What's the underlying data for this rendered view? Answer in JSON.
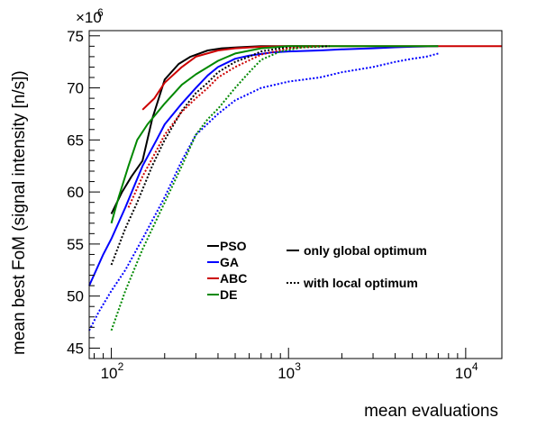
{
  "chart_data": {
    "type": "line",
    "xscale": "log",
    "xlabel": "mean evaluations",
    "ylabel": "mean best FoM (signal intensity [n/s])",
    "y_multiplier": "×10",
    "y_multiplier_exp": "6",
    "xlim": [
      75,
      16000
    ],
    "ylim": [
      44,
      75.5
    ],
    "xticks": [
      {
        "value": 100,
        "base": "10",
        "exp": "2"
      },
      {
        "value": 1000,
        "base": "10",
        "exp": "3"
      },
      {
        "value": 10000,
        "base": "10",
        "exp": "4"
      }
    ],
    "yticks": [
      45,
      50,
      55,
      60,
      65,
      70,
      75
    ],
    "colors": {
      "PSO": "#000000",
      "GA": "#0000ff",
      "ABC": "#cc0000",
      "DE": "#008800"
    },
    "legend": {
      "algorithms": [
        "PSO",
        "GA",
        "ABC",
        "DE"
      ],
      "styles": [
        {
          "label": "only global optimum",
          "dash": "solid"
        },
        {
          "label": "with local optimum",
          "dash": "dotted"
        }
      ]
    },
    "series": [
      {
        "name": "PSO",
        "style": "solid",
        "color": "#000000",
        "x": [
          100,
          115,
          130,
          150,
          170,
          200,
          240,
          280,
          350,
          420,
          520,
          700,
          1000,
          1500
        ],
        "y": [
          57.9,
          60.0,
          61.5,
          63.0,
          67.0,
          70.8,
          72.3,
          73.0,
          73.6,
          73.8,
          73.9,
          74.0,
          74.0,
          74.0
        ]
      },
      {
        "name": "GA",
        "style": "solid",
        "color": "#0000ff",
        "x": [
          75,
          90,
          100,
          120,
          150,
          180,
          200,
          250,
          300,
          350,
          400,
          500,
          600,
          800,
          1000,
          1500,
          2000,
          3000,
          4000,
          5000,
          7000
        ],
        "y": [
          51.0,
          54.0,
          55.5,
          58.5,
          62.5,
          65.0,
          66.5,
          68.5,
          70.0,
          71.2,
          72.0,
          72.8,
          73.1,
          73.4,
          73.5,
          73.6,
          73.7,
          73.8,
          73.9,
          73.95,
          74.0
        ]
      },
      {
        "name": "ABC",
        "style": "solid",
        "color": "#cc0000",
        "x": [
          150,
          175,
          200,
          250,
          300,
          400,
          500,
          700,
          1000,
          2000,
          5000,
          10000,
          16000
        ],
        "y": [
          67.9,
          69.0,
          70.5,
          72.0,
          73.0,
          73.6,
          73.8,
          73.95,
          74.0,
          74.0,
          74.0,
          74.0,
          74.0
        ]
      },
      {
        "name": "DE",
        "style": "solid",
        "color": "#008800",
        "x": [
          100,
          110,
          125,
          140,
          160,
          200,
          250,
          300,
          400,
          500,
          700,
          1000,
          2000,
          5000,
          7000
        ],
        "y": [
          57.0,
          59.5,
          62.5,
          65.0,
          66.5,
          68.5,
          70.3,
          71.3,
          72.6,
          73.3,
          73.8,
          74.0,
          74.0,
          74.0,
          74.0
        ]
      },
      {
        "name": "PSO",
        "style": "dotted",
        "color": "#000000",
        "x": [
          100,
          120,
          140,
          170,
          200,
          250,
          300,
          350,
          400,
          500,
          600,
          700,
          900,
          1200,
          1700
        ],
        "y": [
          53.0,
          56.5,
          59.0,
          62.5,
          65.0,
          67.8,
          69.5,
          70.5,
          71.5,
          72.5,
          73.0,
          73.5,
          73.8,
          73.9,
          74.0
        ]
      },
      {
        "name": "GA",
        "style": "dotted",
        "color": "#0000ff",
        "x": [
          75,
          85,
          100,
          120,
          150,
          200,
          250,
          300,
          400,
          500,
          700,
          1000,
          1500,
          2000,
          3000,
          4000,
          5000,
          6000,
          7000
        ],
        "y": [
          46.7,
          48.5,
          50.5,
          52.5,
          55.5,
          59.5,
          63.0,
          65.5,
          67.5,
          68.8,
          70.0,
          70.6,
          71.0,
          71.5,
          72.0,
          72.5,
          72.8,
          73.0,
          73.3
        ]
      },
      {
        "name": "ABC",
        "style": "dotted",
        "color": "#cc0000",
        "x": [
          125,
          150,
          180,
          200,
          250,
          300,
          350,
          400,
          500,
          700,
          1000,
          1500
        ],
        "y": [
          58.5,
          61.5,
          64.0,
          65.5,
          67.7,
          69.0,
          70.0,
          71.0,
          72.0,
          73.2,
          73.8,
          74.0
        ]
      },
      {
        "name": "DE",
        "style": "dotted",
        "color": "#008800",
        "x": [
          100,
          120,
          150,
          200,
          250,
          300,
          350,
          400,
          500,
          600,
          700,
          900,
          1200,
          1500
        ],
        "y": [
          46.7,
          50.5,
          54.5,
          59.0,
          62.5,
          65.5,
          67.0,
          68.0,
          70.0,
          71.5,
          72.7,
          73.5,
          73.9,
          74.0
        ]
      }
    ]
  }
}
